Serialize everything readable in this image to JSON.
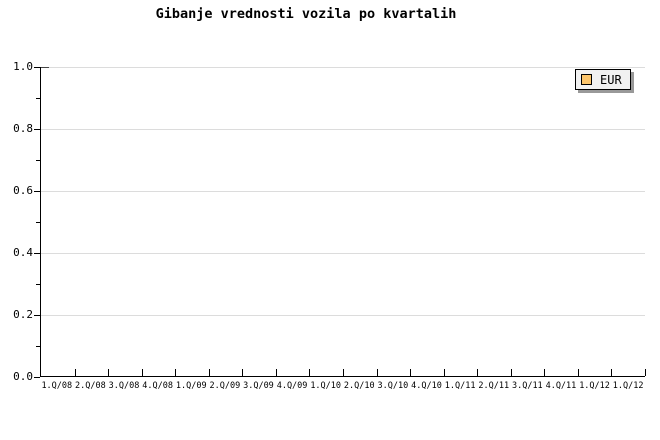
{
  "chart_data": {
    "type": "line",
    "title": "Gibanje vrednosti vozila po kvartalih",
    "xlabel": "",
    "ylabel": "",
    "categories": [
      "1.Q/08",
      "2.Q/08",
      "3.Q/08",
      "4.Q/08",
      "1.Q/09",
      "2.Q/09",
      "3.Q/09",
      "4.Q/09",
      "1.Q/10",
      "2.Q/10",
      "3.Q/10",
      "4.Q/10",
      "1.Q/11",
      "2.Q/11",
      "3.Q/11",
      "4.Q/11",
      "1.Q/12",
      "1.Q/12"
    ],
    "y_tick_labels": [
      "1.0",
      "0.8",
      "0.6",
      "0.4",
      "0.2",
      "0.0"
    ],
    "ylim": [
      0.0,
      1.0
    ],
    "y_major_step": 0.2,
    "y_minor_step": 0.1,
    "grid": "horizontal-major",
    "legend_position": "top-right",
    "series": [
      {
        "name": "EUR",
        "color": "#fcc56b",
        "values": []
      }
    ]
  },
  "legend": {
    "entries": [
      {
        "label": "EUR",
        "swatch_color": "#fcc56b"
      }
    ]
  },
  "colors": {
    "background": "#ffffff",
    "text": "#000000",
    "gridline": "#dcdcdc",
    "axis": "#000000",
    "legend_bg": "#f1f1f1",
    "legend_border": "#000000",
    "legend_shadow": "#999999",
    "swatch": "#fcc56b",
    "swatch_border": "#000000"
  }
}
